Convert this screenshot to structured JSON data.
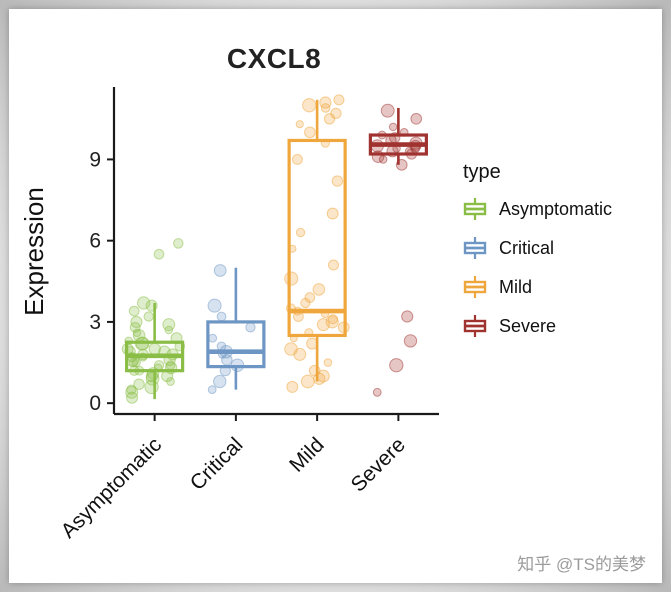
{
  "chart_data": {
    "type": "boxplot",
    "title": "CXCL8",
    "ylabel": "Expression",
    "xlabel": "",
    "ylim": [
      -0.4,
      11.6
    ],
    "yticks": [
      0,
      3,
      6,
      9
    ],
    "grid": false,
    "legend_title": "type",
    "legend_position": "right",
    "categories": [
      "Asymptomatic",
      "Critical",
      "Mild",
      "Severe"
    ],
    "groups": [
      {
        "name": "Asymptomatic",
        "color": "#8ABD45",
        "box": {
          "whisker_low": 0.15,
          "q1": 1.2,
          "median": 1.75,
          "q3": 2.25,
          "whisker_high": 3.7
        },
        "points": [
          0.2,
          0.4,
          0.5,
          0.6,
          0.7,
          0.8,
          0.9,
          1.0,
          1.0,
          1.1,
          1.2,
          1.2,
          1.3,
          1.3,
          1.4,
          1.4,
          1.5,
          1.5,
          1.6,
          1.6,
          1.7,
          1.7,
          1.8,
          1.8,
          1.9,
          1.9,
          2.0,
          2.0,
          2.1,
          2.2,
          2.2,
          2.3,
          2.4,
          2.5,
          2.6,
          2.7,
          2.8,
          2.9,
          3.0,
          3.2,
          3.4,
          3.6,
          3.7,
          5.5,
          5.9
        ]
      },
      {
        "name": "Critical",
        "color": "#6D96C4",
        "box": {
          "whisker_low": 0.5,
          "q1": 1.35,
          "median": 1.9,
          "q3": 3.0,
          "whisker_high": 5.0
        },
        "points": [
          0.5,
          0.8,
          1.2,
          1.4,
          1.6,
          1.8,
          1.9,
          2.1,
          2.4,
          2.8,
          3.2,
          3.6,
          4.9
        ]
      },
      {
        "name": "Mild",
        "color": "#EFA63C",
        "box": {
          "whisker_low": 0.8,
          "q1": 2.5,
          "median": 3.4,
          "q3": 9.7,
          "whisker_high": 11.2
        },
        "points": [
          0.6,
          0.8,
          0.9,
          1.0,
          1.2,
          1.5,
          1.8,
          2.0,
          2.2,
          2.4,
          2.6,
          2.8,
          2.9,
          3.0,
          3.1,
          3.2,
          3.3,
          3.4,
          3.5,
          3.7,
          3.9,
          4.2,
          4.6,
          5.1,
          5.7,
          6.3,
          7.0,
          8.2,
          9.0,
          9.6,
          10.0,
          10.3,
          10.5,
          10.7,
          10.9,
          11.0,
          11.1,
          11.2
        ]
      },
      {
        "name": "Severe",
        "color": "#A0322F",
        "box": {
          "whisker_low": 8.8,
          "q1": 9.2,
          "median": 9.55,
          "q3": 9.9,
          "whisker_high": 10.9
        },
        "points": [
          0.4,
          1.4,
          2.3,
          3.2,
          8.8,
          9.0,
          9.1,
          9.2,
          9.3,
          9.3,
          9.4,
          9.4,
          9.5,
          9.5,
          9.6,
          9.7,
          9.8,
          9.9,
          10.0,
          10.2,
          10.5,
          10.8
        ]
      }
    ]
  },
  "watermark": {
    "text": "知乎 @TS的美梦"
  }
}
